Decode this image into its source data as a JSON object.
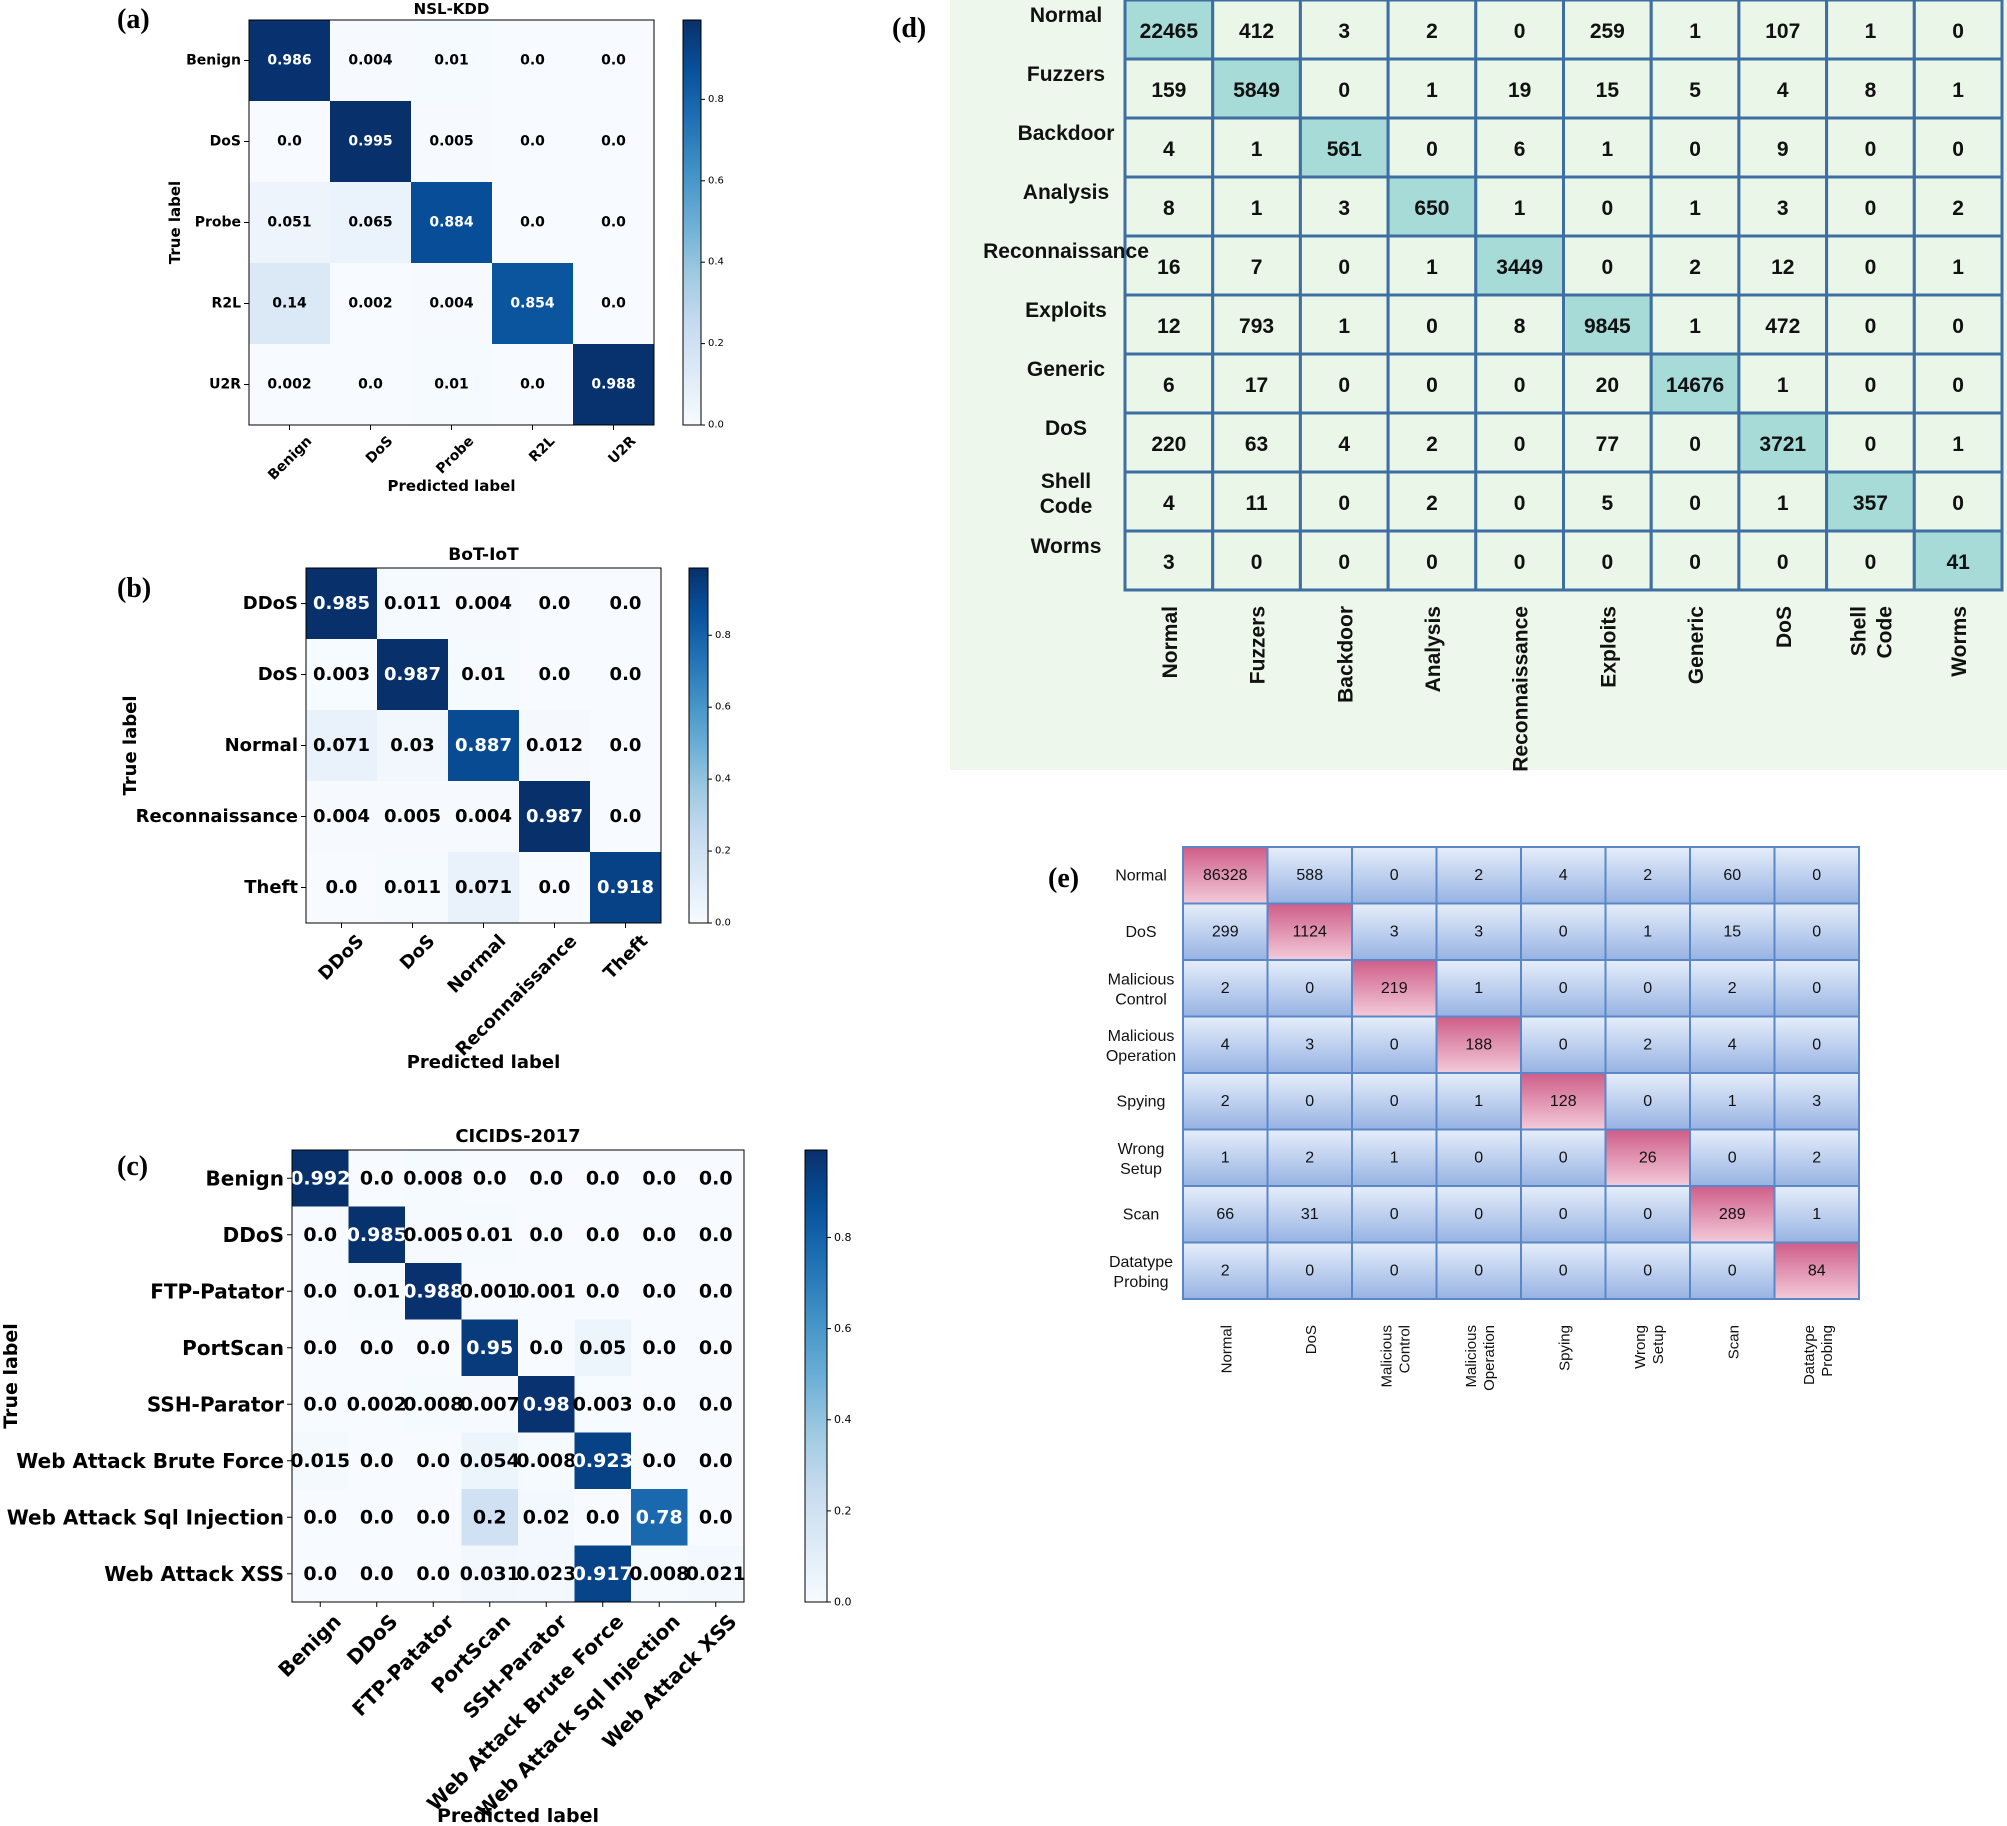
{
  "chart_data": [
    {
      "type": "heatmap",
      "panel_label": "(a)",
      "title": "NSL-KDD",
      "xlabel": "Predicted label",
      "ylabel": "True label",
      "row_labels": [
        "Benign",
        "DoS",
        "Probe",
        "R2L",
        "U2R"
      ],
      "col_labels": [
        "Benign",
        "DoS",
        "Probe",
        "R2L",
        "U2R"
      ],
      "values": [
        [
          "0.986",
          "0.004",
          "0.01",
          "0.0",
          "0.0"
        ],
        [
          "0.0",
          "0.995",
          "0.005",
          "0.0",
          "0.0"
        ],
        [
          "0.051",
          "0.065",
          "0.884",
          "0.0",
          "0.0"
        ],
        [
          "0.14",
          "0.002",
          "0.004",
          "0.854",
          "0.0"
        ],
        [
          "0.002",
          "0.0",
          "0.01",
          "0.0",
          "0.988"
        ]
      ],
      "colorbar_ticks": [
        "0.0",
        "0.2",
        "0.4",
        "0.6",
        "0.8"
      ],
      "colorbar_range": [
        0,
        0.995
      ]
    },
    {
      "type": "heatmap",
      "panel_label": "(b)",
      "title": "BoT-IoT",
      "xlabel": "Predicted label",
      "ylabel": "True label",
      "row_labels": [
        "DDoS",
        "DoS",
        "Normal",
        "Reconnaissance",
        "Theft"
      ],
      "col_labels": [
        "DDoS",
        "DoS",
        "Normal",
        "Reconnaissance",
        "Theft"
      ],
      "values": [
        [
          "0.985",
          "0.011",
          "0.004",
          "0.0",
          "0.0"
        ],
        [
          "0.003",
          "0.987",
          "0.01",
          "0.0",
          "0.0"
        ],
        [
          "0.071",
          "0.03",
          "0.887",
          "0.012",
          "0.0"
        ],
        [
          "0.004",
          "0.005",
          "0.004",
          "0.987",
          "0.0"
        ],
        [
          "0.0",
          "0.011",
          "0.071",
          "0.0",
          "0.918"
        ]
      ],
      "colorbar_ticks": [
        "0.0",
        "0.2",
        "0.4",
        "0.6",
        "0.8"
      ],
      "colorbar_range": [
        0,
        0.987
      ]
    },
    {
      "type": "heatmap",
      "panel_label": "(c)",
      "title": "CICIDS-2017",
      "xlabel": "Predicted label",
      "ylabel": "True label",
      "row_labels": [
        "Benign",
        "DDoS",
        "FTP-Patator",
        "PortScan",
        "SSH-Parator",
        "Web Attack Brute Force",
        "Web Attack Sql Injection",
        "Web Attack XSS"
      ],
      "col_labels": [
        "Benign",
        "DDoS",
        "FTP-Patator",
        "PortScan",
        "SSH-Parator",
        "Web Attack Brute Force",
        "Web Attack Sql Injection",
        "Web Attack XSS"
      ],
      "values": [
        [
          "0.992",
          "0.0",
          "0.008",
          "0.0",
          "0.0",
          "0.0",
          "0.0",
          "0.0"
        ],
        [
          "0.0",
          "0.985",
          "0.005",
          "0.01",
          "0.0",
          "0.0",
          "0.0",
          "0.0"
        ],
        [
          "0.0",
          "0.01",
          "0.988",
          "0.001",
          "0.001",
          "0.0",
          "0.0",
          "0.0"
        ],
        [
          "0.0",
          "0.0",
          "0.0",
          "0.95",
          "0.0",
          "0.05",
          "0.0",
          "0.0"
        ],
        [
          "0.0",
          "0.002",
          "0.008",
          "0.007",
          "0.98",
          "0.003",
          "0.0",
          "0.0"
        ],
        [
          "0.015",
          "0.0",
          "0.0",
          "0.054",
          "0.008",
          "0.923",
          "0.0",
          "0.0"
        ],
        [
          "0.0",
          "0.0",
          "0.0",
          "0.2",
          "0.02",
          "0.0",
          "0.78",
          "0.0"
        ],
        [
          "0.0",
          "0.0",
          "0.0",
          "0.031",
          "0.023",
          "0.917",
          "0.008",
          "0.021"
        ]
      ],
      "colorbar_ticks": [
        "0.0",
        "0.2",
        "0.4",
        "0.6",
        "0.8"
      ],
      "colorbar_range": [
        0,
        0.992
      ]
    },
    {
      "type": "heatmap",
      "panel_label": "(d)",
      "title": "",
      "xlabel": "",
      "ylabel": "",
      "row_labels": [
        "Normal",
        "Fuzzers",
        "Backdoor",
        "Analysis",
        "Reconnaissance",
        "Exploits",
        "Generic",
        "DoS",
        [
          "Shell",
          "Code"
        ],
        "Worms"
      ],
      "col_labels": [
        "Normal",
        "Fuzzers",
        "Backdoor",
        "Analysis",
        "Reconnaissance",
        "Exploits",
        "Generic",
        "DoS",
        [
          "Shell",
          "Code"
        ],
        "Worms"
      ],
      "values": [
        [
          "22465",
          "412",
          "3",
          "2",
          "0",
          "259",
          "1",
          "107",
          "1",
          "0"
        ],
        [
          "159",
          "5849",
          "0",
          "1",
          "19",
          "15",
          "5",
          "4",
          "8",
          "1"
        ],
        [
          "4",
          "1",
          "561",
          "0",
          "6",
          "1",
          "0",
          "9",
          "0",
          "0"
        ],
        [
          "8",
          "1",
          "3",
          "650",
          "1",
          "0",
          "1",
          "3",
          "0",
          "2"
        ],
        [
          "16",
          "7",
          "0",
          "1",
          "3449",
          "0",
          "2",
          "12",
          "0",
          "1"
        ],
        [
          "12",
          "793",
          "1",
          "0",
          "8",
          "9845",
          "1",
          "472",
          "0",
          "0"
        ],
        [
          "6",
          "17",
          "0",
          "0",
          "0",
          "20",
          "14676",
          "1",
          "0",
          "0"
        ],
        [
          "220",
          "63",
          "4",
          "2",
          "0",
          "77",
          "0",
          "3721",
          "0",
          "1"
        ],
        [
          "4",
          "11",
          "0",
          "2",
          "0",
          "5",
          "0",
          "1",
          "357",
          "0"
        ],
        [
          "3",
          "0",
          "0",
          "0",
          "0",
          "0",
          "0",
          "0",
          "0",
          "41"
        ]
      ]
    },
    {
      "type": "heatmap",
      "panel_label": "(e)",
      "title": "",
      "xlabel": "",
      "ylabel": "",
      "row_labels": [
        "Normal",
        "DoS",
        [
          "Malicious",
          "Control"
        ],
        [
          "Malicious",
          "Operation"
        ],
        "Spying",
        [
          "Wrong",
          "Setup"
        ],
        "Scan",
        [
          "Datatype",
          "Probing"
        ]
      ],
      "col_labels": [
        "Normal",
        "DoS",
        [
          "Malicious",
          "Control"
        ],
        [
          "Malicious",
          "Operation"
        ],
        "Spying",
        [
          "Wrong",
          "Setup"
        ],
        "Scan",
        [
          "Datatype",
          "Probing"
        ]
      ],
      "values": [
        [
          "86328",
          "588",
          "0",
          "2",
          "4",
          "2",
          "60",
          "0"
        ],
        [
          "299",
          "1124",
          "3",
          "3",
          "0",
          "1",
          "15",
          "0"
        ],
        [
          "2",
          "0",
          "219",
          "1",
          "0",
          "0",
          "2",
          "0"
        ],
        [
          "4",
          "3",
          "0",
          "188",
          "0",
          "2",
          "4",
          "0"
        ],
        [
          "2",
          "0",
          "0",
          "1",
          "128",
          "0",
          "1",
          "3"
        ],
        [
          "1",
          "2",
          "1",
          "0",
          "0",
          "26",
          "0",
          "2"
        ],
        [
          "66",
          "31",
          "0",
          "0",
          "0",
          "0",
          "289",
          "1"
        ],
        [
          "2",
          "0",
          "0",
          "0",
          "0",
          "0",
          "0",
          "84"
        ]
      ]
    }
  ],
  "colors": {
    "blues_low": "#f7fbff",
    "blues_high": "#08306b",
    "panel_d_background": "#eef7ec",
    "panel_d_cell": "#eaf6e8",
    "panel_d_diagonal": "#a6dbd8",
    "panel_d_border": "#3d6fa2",
    "panel_e_top": "#dbe5f5",
    "panel_e_bottom": "#7f9fd8",
    "panel_e_diagonal": "#d9769a",
    "panel_e_border": "#5b87c9"
  }
}
